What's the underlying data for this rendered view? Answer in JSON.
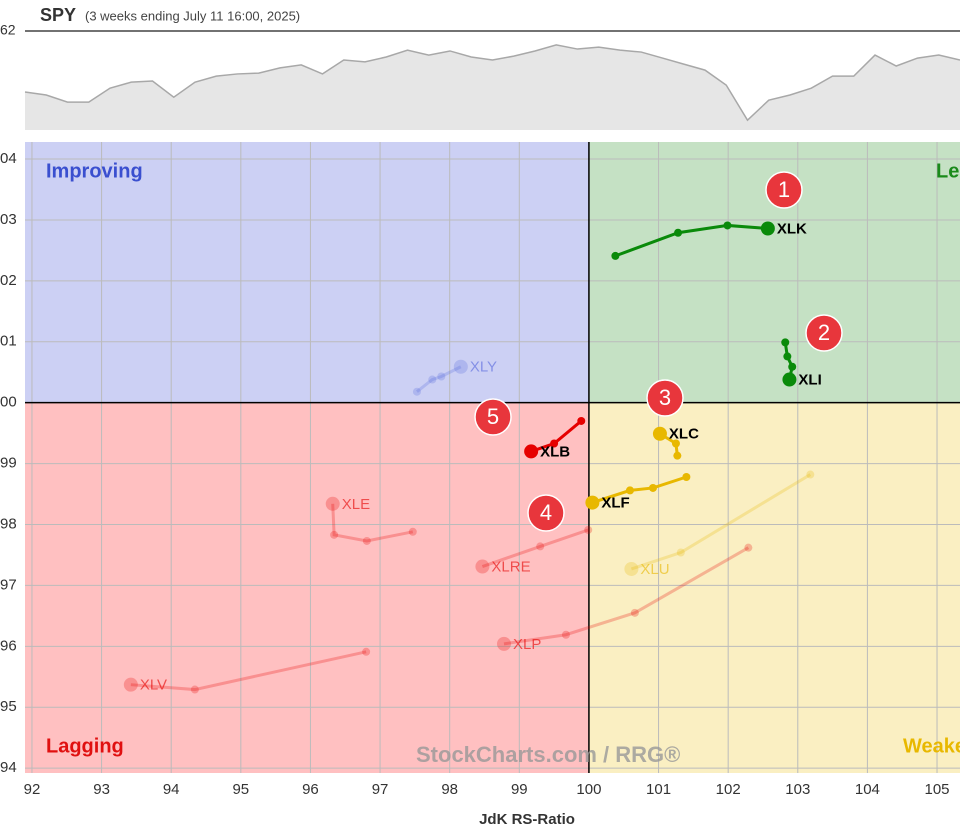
{
  "chart_data": [
    {
      "type": "line",
      "title": "SPY",
      "subtitle": "(3 weeks ending July 11 16:00, 2025)",
      "color": "#a8a8a8",
      "values": [
        603.9,
        602.8,
        600.2,
        600.2,
        605.3,
        607.5,
        607.9,
        602.0,
        607.5,
        609.7,
        610.5,
        610.8,
        612.7,
        613.8,
        610.5,
        615.6,
        614.9,
        616.7,
        619.2,
        617.4,
        618.9,
        616.7,
        615.6,
        617.0,
        618.9,
        621.1,
        619.6,
        620.3,
        619.2,
        618.5,
        616.3,
        614.1,
        611.9,
        606.4,
        593.6,
        600.9,
        602.8,
        605.3,
        609.7,
        609.7,
        617.4,
        613.4,
        616.3,
        617.4,
        615.6
      ],
      "ylim": [
        590,
        626.2
      ],
      "yticks": [
        {
          "value": 626.2,
          "label": "62"
        }
      ]
    },
    {
      "type": "rrg",
      "xlabel": "JdK RS-Ratio",
      "xlim": [
        91.9,
        105.33
      ],
      "ylim": [
        93.92,
        104.28
      ],
      "center": 100,
      "grid": true,
      "xticks": [
        92,
        93,
        94,
        95,
        96,
        97,
        98,
        99,
        100,
        101,
        102,
        103,
        104,
        105
      ],
      "yticks": [
        94,
        95,
        96,
        97,
        98,
        99,
        {
          "value": 100,
          "label": "00"
        },
        {
          "value": 101,
          "label": "01"
        },
        {
          "value": 102,
          "label": "02"
        },
        {
          "value": 103,
          "label": "03"
        },
        {
          "value": 104,
          "label": "04"
        }
      ],
      "quadrants": [
        {
          "label": "Improving",
          "color": "#ccd0f4",
          "text_color": "#3a4fcf"
        },
        {
          "label": "Lea",
          "color": "#c5e1c4",
          "text_color": "#1a8a1a"
        },
        {
          "label": "Lagging",
          "color": "#ffc0c1",
          "text_color": "#e01010"
        },
        {
          "label": "Weake",
          "color": "#faefc2",
          "text_color": "#e8b800"
        }
      ],
      "series": [
        {
          "name": "XLK",
          "color": "#0a8a0a",
          "opacity": 1,
          "x": [
            100.38,
            101.28,
            101.99,
            102.57
          ],
          "y": [
            102.41,
            102.79,
            102.91,
            102.86
          ]
        },
        {
          "name": "XLI",
          "color": "#0a8a0a",
          "opacity": 1,
          "x": [
            102.82,
            102.85,
            102.92,
            102.88
          ],
          "y": [
            100.99,
            100.76,
            100.59,
            100.38
          ]
        },
        {
          "name": "XLC",
          "color": "#e8b800",
          "opacity": 1,
          "x": [
            101.27,
            101.25,
            101.02
          ],
          "y": [
            99.13,
            99.33,
            99.49
          ]
        },
        {
          "name": "XLF",
          "color": "#e8b800",
          "opacity": 1,
          "x": [
            101.4,
            100.92,
            100.59,
            100.05
          ],
          "y": [
            98.78,
            98.6,
            98.56,
            98.36
          ]
        },
        {
          "name": "XLB",
          "color": "#e60000",
          "opacity": 1,
          "x": [
            99.89,
            99.5,
            99.17
          ],
          "y": [
            99.7,
            99.33,
            99.2
          ]
        },
        {
          "name": "XLY",
          "color": "#5566dd",
          "opacity": 0.25,
          "x": [
            97.53,
            97.75,
            97.88,
            98.16
          ],
          "y": [
            100.18,
            100.38,
            100.43,
            100.59
          ]
        },
        {
          "name": "XLE",
          "color": "#e60000",
          "opacity": 0.25,
          "x": [
            97.47,
            96.81,
            96.34,
            96.32
          ],
          "y": [
            97.88,
            97.73,
            97.83,
            98.34
          ]
        },
        {
          "name": "XLRE",
          "color": "#e60000",
          "opacity": 0.25,
          "x": [
            99.99,
            99.3,
            98.47
          ],
          "y": [
            97.91,
            97.64,
            97.31
          ]
        },
        {
          "name": "XLU",
          "color": "#e8b800",
          "opacity": 0.25,
          "x": [
            103.18,
            101.32,
            100.61
          ],
          "y": [
            98.82,
            97.54,
            97.27
          ]
        },
        {
          "name": "XLP",
          "color": "#e60000",
          "opacity": 0.25,
          "x": [
            102.29,
            100.66,
            99.67,
            98.78
          ],
          "y": [
            97.62,
            96.55,
            96.19,
            96.04
          ]
        },
        {
          "name": "XLV",
          "color": "#e60000",
          "opacity": 0.25,
          "x": [
            96.8,
            94.34,
            93.42
          ],
          "y": [
            95.91,
            95.29,
            95.37
          ]
        }
      ],
      "annotations": [
        "1",
        "2",
        "3",
        "4",
        "5"
      ],
      "watermark": "StockCharts.com / RRG®"
    }
  ]
}
